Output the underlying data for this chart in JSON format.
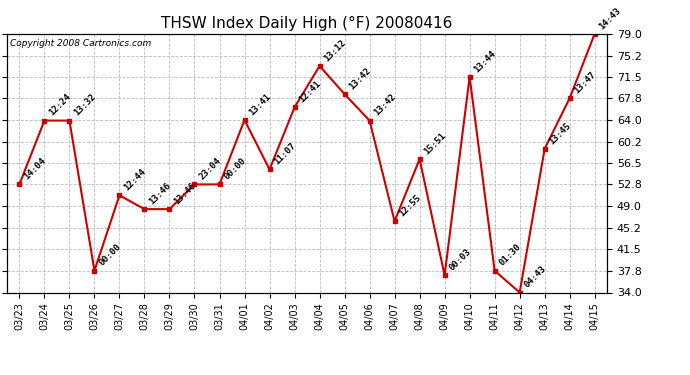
{
  "title": "THSW Index Daily High (°F) 20080416",
  "copyright": "Copyright 2008 Cartronics.com",
  "dates": [
    "03/23",
    "03/24",
    "03/25",
    "03/26",
    "03/27",
    "03/28",
    "03/29",
    "03/30",
    "03/31",
    "04/01",
    "04/02",
    "04/03",
    "04/04",
    "04/05",
    "04/06",
    "04/07",
    "04/08",
    "04/09",
    "04/10",
    "04/11",
    "04/12",
    "04/13",
    "04/14",
    "04/15"
  ],
  "values": [
    52.8,
    63.9,
    63.9,
    37.8,
    50.9,
    48.5,
    48.5,
    52.8,
    52.8,
    64.0,
    55.4,
    66.2,
    73.4,
    68.5,
    63.9,
    46.4,
    57.2,
    37.0,
    71.5,
    37.8,
    34.0,
    59.0,
    67.8,
    79.0
  ],
  "annotations": [
    "14:04",
    "12:24",
    "13:32",
    "00:00",
    "12:44",
    "13:46",
    "13:46",
    "23:04",
    "00:00",
    "13:41",
    "11:07",
    "12:41",
    "13:12",
    "13:42",
    "13:42",
    "12:55",
    "15:51",
    "00:03",
    "13:44",
    "01:30",
    "04:43",
    "13:45",
    "13:47",
    "14:43"
  ],
  "ylim": [
    34.0,
    79.0
  ],
  "yticks": [
    34.0,
    37.8,
    41.5,
    45.2,
    49.0,
    52.8,
    56.5,
    60.2,
    64.0,
    67.8,
    71.5,
    75.2,
    79.0
  ],
  "line_color": "#cc0000",
  "marker_color": "#cc0000",
  "bg_color": "#ffffff",
  "plot_bg": "#ffffff",
  "grid_color": "#bbbbbb",
  "title_fontsize": 11,
  "annotation_fontsize": 6.5,
  "copyright_fontsize": 6.5
}
